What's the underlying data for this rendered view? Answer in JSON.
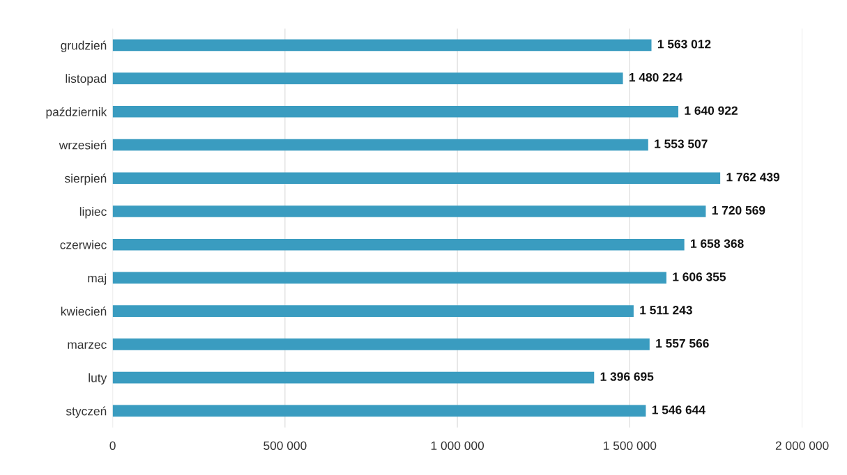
{
  "chart_data": {
    "type": "bar",
    "orientation": "horizontal",
    "categories": [
      "grudzień",
      "listopad",
      "październik",
      "wrzesień",
      "sierpień",
      "lipiec",
      "czerwiec",
      "maj",
      "kwiecień",
      "marzec",
      "luty",
      "styczeń"
    ],
    "values": [
      1563012,
      1480224,
      1640922,
      1553507,
      1762439,
      1720569,
      1658368,
      1606355,
      1511243,
      1557566,
      1396695,
      1546644
    ],
    "value_labels": [
      "1 563 012",
      "1 480 224",
      "1 640 922",
      "1 553 507",
      "1 762 439",
      "1 720 569",
      "1 658 368",
      "1 606 355",
      "1 511 243",
      "1 557 566",
      "1 396 695",
      "1 546 644"
    ],
    "color": "#3a9cc0",
    "xlim": [
      0,
      2000000
    ],
    "xticks": [
      0,
      {
        "value": 500000,
        "label": "500 000"
      },
      {
        "value": 1000000,
        "label": "1 000 000"
      },
      {
        "value": 1500000,
        "label": "1 500 000"
      },
      {
        "value": 2000000,
        "label": "2 000 000"
      }
    ],
    "grid": "x"
  }
}
